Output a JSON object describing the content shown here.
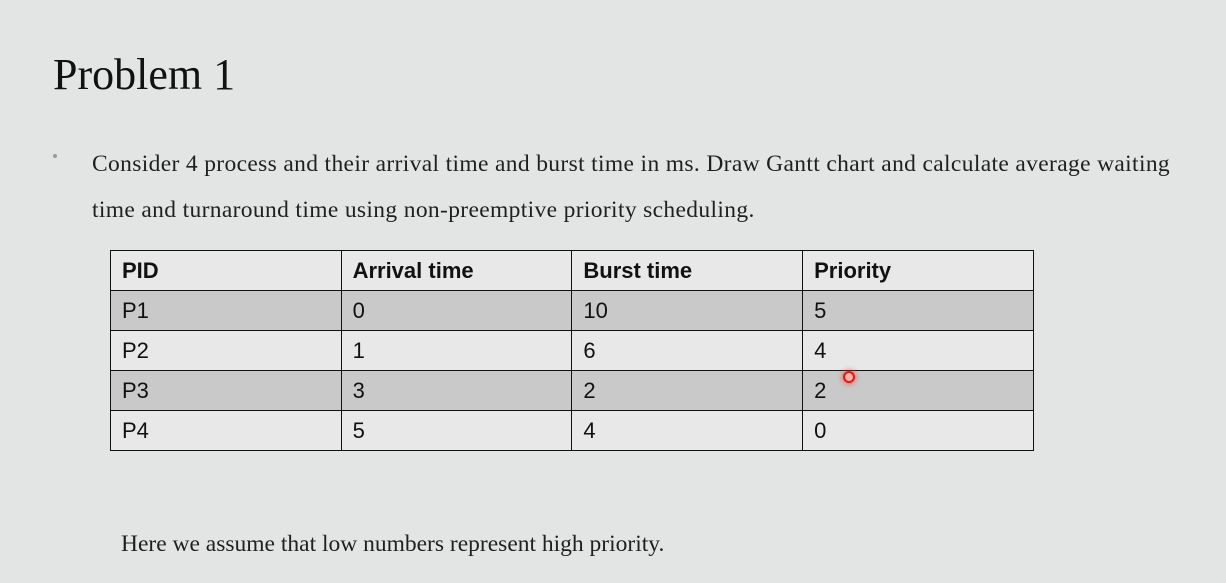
{
  "slide": {
    "title": "Problem 1",
    "bullet": "Consider 4 process and their arrival time and burst time in ms. Draw Gantt chart and calculate average waiting time and turnaround time using non-preemptive priority scheduling.",
    "note": "Here we assume that low numbers represent high priority."
  },
  "table": {
    "headers": [
      "PID",
      "Arrival time",
      "Burst time",
      "Priority"
    ],
    "rows": [
      [
        "P1",
        "0",
        "10",
        "5"
      ],
      [
        "P2",
        "1",
        "6",
        "4"
      ],
      [
        "P3",
        "3",
        "2",
        "2"
      ],
      [
        "P4",
        "5",
        "4",
        "0"
      ]
    ]
  },
  "colors": {
    "background": "#e3e5e4",
    "row_shaded": "#c9c9c9",
    "row_light": "#e8e8e8",
    "pointer": "#e51515"
  }
}
